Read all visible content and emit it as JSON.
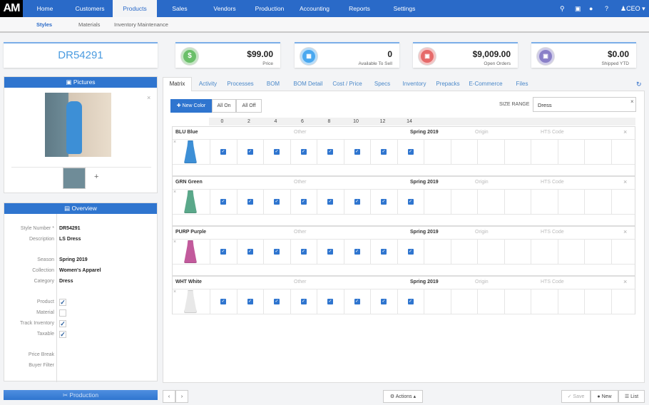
{
  "app": {
    "logo": "AM",
    "user": "CEO"
  },
  "nav": [
    "Home",
    "Customers",
    "Products",
    "Sales",
    "Vendors",
    "Production",
    "Accounting",
    "Reports",
    "Settings"
  ],
  "nav_active": "Products",
  "subnav": [
    "Styles",
    "Materials",
    "Inventory Maintenance"
  ],
  "style_number": "DR54291",
  "stats": [
    {
      "value": "$99.00",
      "label": "Price",
      "icon": "dollar-icon",
      "color": "#6bbf6a"
    },
    {
      "value": "0",
      "label": "Available To Sell",
      "icon": "bar-chart-icon",
      "color": "#4aa8ef"
    },
    {
      "value": "$9,009.00",
      "label": "Open Orders",
      "icon": "cart-icon",
      "color": "#e66a6a"
    },
    {
      "value": "$0.00",
      "label": "Shipped YTD",
      "icon": "cart-icon",
      "color": "#8a80c8"
    }
  ],
  "pictures": {
    "title": "Pictures",
    "add": "+"
  },
  "overview": {
    "title": "Overview",
    "fields": [
      {
        "label": "Style Number *",
        "value": "DR54291"
      },
      {
        "label": "Description",
        "value": "LS Dress"
      },
      {
        "label": "Season",
        "value": "Spring 2019"
      },
      {
        "label": "Collection",
        "value": "Women's Apparel"
      },
      {
        "label": "Category",
        "value": "Dress"
      }
    ],
    "checks": [
      {
        "label": "Product",
        "checked": true
      },
      {
        "label": "Material",
        "checked": false
      },
      {
        "label": "Track Inventory",
        "checked": true
      },
      {
        "label": "Taxable",
        "checked": true
      }
    ],
    "extra": [
      "Price Break",
      "Buyer Filter"
    ]
  },
  "production": {
    "title": "Production"
  },
  "tabs": [
    "Matrix",
    "Activity",
    "Processes",
    "BOM",
    "BOM Detail",
    "Cost / Price",
    "Specs",
    "Inventory",
    "Prepacks",
    "E-Commerce",
    "Files"
  ],
  "matrix": {
    "new_color": "New Color",
    "all_on": "All On",
    "all_off": "All Off",
    "size_range_label": "SIZE RANGE",
    "size_range": "Dress",
    "sizes": [
      "0",
      "2",
      "4",
      "6",
      "8",
      "10",
      "12",
      "14"
    ],
    "colors": [
      {
        "name": "BLU Blue",
        "other": "Other",
        "season": "Spring 2019",
        "origin": "Origin",
        "hts": "HTS Code",
        "dress": "#3d8fd6"
      },
      {
        "name": "GRN Green",
        "other": "Other",
        "season": "Spring 2019",
        "origin": "Origin",
        "hts": "HTS Code",
        "dress": "#5aa88a"
      },
      {
        "name": "PURP Purple",
        "other": "Other",
        "season": "Spring 2019",
        "origin": "Origin",
        "hts": "HTS Code",
        "dress": "#c25a9c"
      },
      {
        "name": "WHT White",
        "other": "Other",
        "season": "Spring 2019",
        "origin": "Origin",
        "hts": "HTS Code",
        "dress": "#e8e8e8"
      }
    ]
  },
  "footer": {
    "actions": "Actions",
    "save": "Save",
    "new": "New",
    "list": "List",
    "prev": "‹",
    "next": "›"
  }
}
